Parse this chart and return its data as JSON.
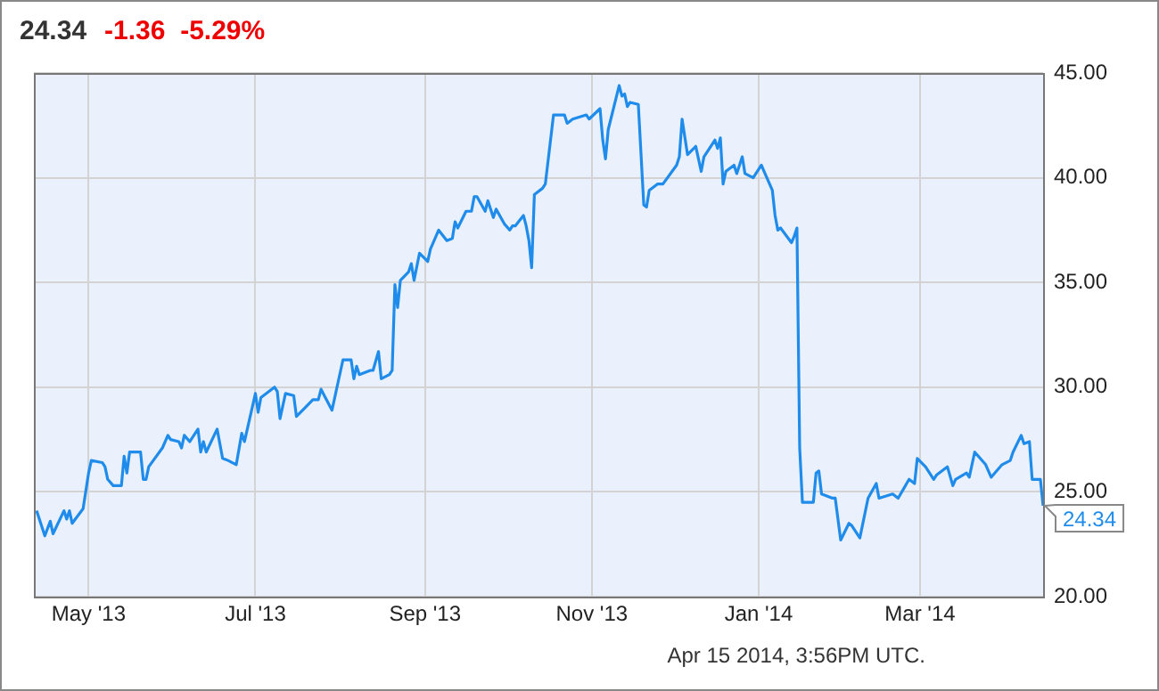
{
  "chart_data": {
    "type": "line",
    "title": "24.34",
    "subtitle": "-1.36  -5.29%",
    "x": [
      "2013-04-12",
      "2013-04-15",
      "2013-04-17",
      "2013-04-18",
      "2013-04-22",
      "2013-04-23",
      "2013-04-24",
      "2013-04-25",
      "2013-04-29",
      "2013-05-01",
      "2013-05-02",
      "2013-05-06",
      "2013-05-07",
      "2013-05-08",
      "2013-05-10",
      "2013-05-13",
      "2013-05-14",
      "2013-05-15",
      "2013-05-16",
      "2013-05-20",
      "2013-05-21",
      "2013-05-22",
      "2013-05-23",
      "2013-05-28",
      "2013-05-30",
      "2013-05-31",
      "2013-06-03",
      "2013-06-04",
      "2013-06-05",
      "2013-06-07",
      "2013-06-10",
      "2013-06-11",
      "2013-06-12",
      "2013-06-13",
      "2013-06-17",
      "2013-06-19",
      "2013-06-21",
      "2013-06-24",
      "2013-06-26",
      "2013-06-27",
      "2013-07-01",
      "2013-07-02",
      "2013-07-03",
      "2013-07-08",
      "2013-07-09",
      "2013-07-10",
      "2013-07-12",
      "2013-07-15",
      "2013-07-16",
      "2013-07-19",
      "2013-07-22",
      "2013-07-24",
      "2013-07-25",
      "2013-07-29",
      "2013-08-02",
      "2013-08-05",
      "2013-08-06",
      "2013-08-07",
      "2013-08-08",
      "2013-08-12",
      "2013-08-13",
      "2013-08-15",
      "2013-08-16",
      "2013-08-19",
      "2013-08-20",
      "2013-08-21",
      "2013-08-22",
      "2013-08-23",
      "2013-08-26",
      "2013-08-27",
      "2013-08-28",
      "2013-08-30",
      "2013-09-02",
      "2013-09-03",
      "2013-09-06",
      "2013-09-09",
      "2013-09-11",
      "2013-09-12",
      "2013-09-13",
      "2013-09-16",
      "2013-09-18",
      "2013-09-19",
      "2013-09-20",
      "2013-09-23",
      "2013-09-24",
      "2013-09-26",
      "2013-09-27",
      "2013-09-30",
      "2013-10-02",
      "2013-10-03",
      "2013-10-04",
      "2013-10-07",
      "2013-10-08",
      "2013-10-09",
      "2013-10-10",
      "2013-10-11",
      "2013-10-14",
      "2013-10-15",
      "2013-10-18",
      "2013-10-22",
      "2013-10-23",
      "2013-10-25",
      "2013-10-30",
      "2013-10-31",
      "2013-11-04",
      "2013-11-05",
      "2013-11-06",
      "2013-11-07",
      "2013-11-11",
      "2013-11-12",
      "2013-11-13",
      "2013-11-14",
      "2013-11-15",
      "2013-11-18",
      "2013-11-20",
      "2013-11-21",
      "2013-11-22",
      "2013-11-25",
      "2013-11-27",
      "2013-12-02",
      "2013-12-03",
      "2013-12-04",
      "2013-12-06",
      "2013-12-09",
      "2013-12-11",
      "2013-12-12",
      "2013-12-16",
      "2013-12-17",
      "2013-12-18",
      "2013-12-19",
      "2013-12-20",
      "2013-12-23",
      "2013-12-24",
      "2013-12-26",
      "2013-12-27",
      "2013-12-30",
      "2014-01-02",
      "2014-01-03",
      "2014-01-06",
      "2014-01-07",
      "2014-01-08",
      "2014-01-09",
      "2014-01-13",
      "2014-01-14",
      "2014-01-15",
      "2014-01-16",
      "2014-01-17",
      "2014-01-21",
      "2014-01-22",
      "2014-01-23",
      "2014-01-24",
      "2014-01-28",
      "2014-01-29",
      "2014-01-31",
      "2014-02-03",
      "2014-02-04",
      "2014-02-07",
      "2014-02-10",
      "2014-02-13",
      "2014-02-14",
      "2014-02-19",
      "2014-02-21",
      "2014-02-25",
      "2014-02-27",
      "2014-02-28",
      "2014-03-03",
      "2014-03-06",
      "2014-03-07",
      "2014-03-11",
      "2014-03-13",
      "2014-03-14",
      "2014-03-18",
      "2014-03-19",
      "2014-03-21",
      "2014-03-25",
      "2014-03-27",
      "2014-03-31",
      "2014-04-03",
      "2014-04-04",
      "2014-04-07",
      "2014-04-08",
      "2014-04-10",
      "2014-04-11",
      "2014-04-14",
      "2014-04-15"
    ],
    "series": [
      {
        "color": "#1f8ceb",
        "values": [
          24.1,
          22.9,
          23.6,
          23.0,
          24.1,
          23.7,
          24.1,
          23.5,
          24.2,
          25.9,
          26.5,
          26.4,
          26.2,
          25.6,
          25.3,
          25.3,
          26.7,
          25.9,
          26.9,
          26.9,
          25.6,
          25.6,
          26.2,
          27.1,
          27.7,
          27.5,
          27.4,
          27.1,
          27.7,
          27.4,
          28.0,
          26.9,
          27.4,
          26.9,
          28.0,
          26.6,
          26.5,
          26.3,
          27.8,
          27.4,
          29.7,
          28.8,
          29.5,
          30.0,
          29.8,
          28.5,
          29.7,
          29.6,
          28.6,
          29.0,
          29.4,
          29.4,
          29.9,
          28.9,
          31.3,
          31.3,
          30.4,
          31.0,
          30.6,
          30.8,
          30.8,
          31.7,
          30.4,
          30.6,
          30.8,
          34.9,
          33.8,
          35.1,
          35.5,
          35.9,
          35.1,
          36.4,
          36.0,
          36.6,
          37.5,
          37.0,
          37.1,
          37.9,
          37.6,
          38.4,
          38.4,
          39.1,
          39.1,
          38.4,
          38.9,
          38.1,
          38.5,
          37.8,
          37.5,
          37.7,
          37.7,
          38.2,
          37.7,
          37.0,
          35.7,
          39.2,
          39.5,
          39.7,
          43.0,
          43.0,
          42.6,
          42.8,
          43.0,
          42.8,
          43.3,
          41.8,
          40.9,
          42.3,
          44.4,
          43.9,
          44.0,
          43.4,
          43.6,
          43.5,
          38.7,
          38.6,
          39.4,
          39.7,
          39.7,
          40.6,
          41.0,
          42.8,
          41.1,
          41.5,
          40.3,
          41.0,
          41.8,
          41.4,
          41.9,
          39.7,
          40.3,
          40.6,
          40.2,
          41.0,
          40.2,
          40.0,
          40.6,
          40.3,
          39.4,
          38.2,
          37.5,
          37.6,
          36.9,
          37.2,
          37.6,
          27.1,
          24.5,
          24.5,
          25.9,
          26.0,
          24.9,
          24.7,
          24.7,
          22.7,
          23.5,
          23.4,
          22.8,
          24.7,
          25.4,
          24.7,
          24.9,
          24.7,
          25.6,
          25.4,
          26.6,
          26.2,
          25.6,
          25.8,
          26.2,
          25.3,
          25.6,
          25.9,
          25.7,
          26.9,
          26.3,
          25.7,
          26.3,
          26.5,
          26.9,
          27.7,
          27.3,
          27.4,
          25.6,
          25.6,
          24.34
        ]
      }
    ],
    "xlim": [
      "2013-04-11",
      "2014-04-15"
    ],
    "xticks": [
      {
        "value": "2013-05-01",
        "label": "May '13"
      },
      {
        "value": "2013-07-01",
        "label": "Jul '13"
      },
      {
        "value": "2013-09-01",
        "label": "Sep '13"
      },
      {
        "value": "2013-11-01",
        "label": "Nov '13"
      },
      {
        "value": "2014-01-01",
        "label": "Jan '14"
      },
      {
        "value": "2014-03-01",
        "label": "Mar '14"
      }
    ],
    "ylim": [
      20,
      45
    ],
    "yticks": [
      {
        "value": 20,
        "label": "20.00"
      },
      {
        "value": 25,
        "label": "25.00"
      },
      {
        "value": 30,
        "label": "30.00"
      },
      {
        "value": 35,
        "label": "35.00"
      },
      {
        "value": 40,
        "label": "40.00"
      },
      {
        "value": 45,
        "label": "45.00"
      }
    ],
    "grid": true,
    "legend": false,
    "marker": "none",
    "line_style": "solid",
    "annotations": [
      {
        "text": "24.34",
        "x": "2014-04-15",
        "y": 24.34
      },
      "Apr 15 2014, 3:56PM UTC."
    ]
  }
}
